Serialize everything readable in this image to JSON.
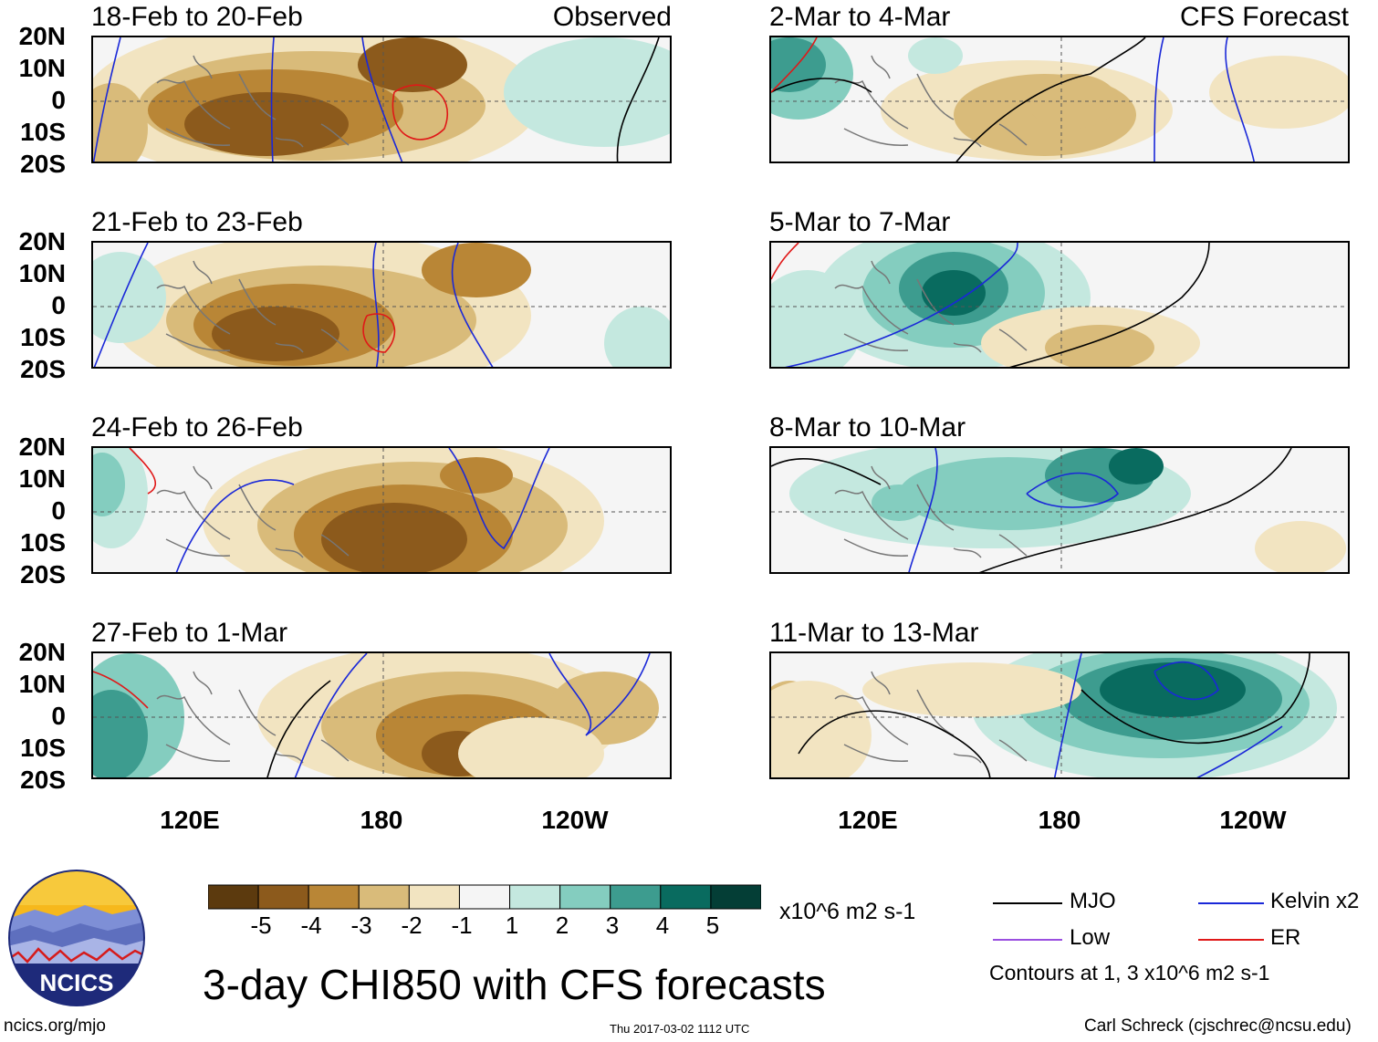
{
  "header": {
    "observed_label": "Observed",
    "forecast_label": "CFS Forecast"
  },
  "panels": {
    "left": [
      {
        "title": "18-Feb to 20-Feb"
      },
      {
        "title": "21-Feb to 23-Feb"
      },
      {
        "title": "24-Feb to 26-Feb"
      },
      {
        "title": "27-Feb to 1-Mar"
      }
    ],
    "right": [
      {
        "title": "2-Mar to 4-Mar"
      },
      {
        "title": "5-Mar to 7-Mar"
      },
      {
        "title": "8-Mar to 10-Mar"
      },
      {
        "title": "11-Mar to 13-Mar"
      }
    ]
  },
  "axes": {
    "lat_ticks": [
      "20N",
      "10N",
      "0",
      "10S",
      "20S"
    ],
    "lon_ticks": [
      "120E",
      "180",
      "120W"
    ]
  },
  "colorbar": {
    "labels": [
      "-5",
      "-4",
      "-3",
      "-2",
      "-1",
      "1",
      "2",
      "3",
      "4",
      "5"
    ],
    "colors": [
      "#5c3a0e",
      "#8c5a1c",
      "#b98636",
      "#d9bb7a",
      "#f2e4c1",
      "#f5f5f5",
      "#c4e8df",
      "#84cdbf",
      "#3d9c8f",
      "#096b5f",
      "#043e36"
    ],
    "units": "x10^6 m2 s-1"
  },
  "legend": {
    "items": [
      {
        "label": "MJO",
        "color": "#000000"
      },
      {
        "label": "Kelvin x2",
        "color": "#1a28d8"
      },
      {
        "label": "Low",
        "color": "#9a4fe0"
      },
      {
        "label": "ER",
        "color": "#e01818"
      }
    ],
    "note": "Contours at 1, 3 x10^6 m2 s-1"
  },
  "title": "3-day CHI850 with CFS forecasts",
  "footer": {
    "site": "ncics.org/mjo",
    "timestamp": "Thu 2017-03-02 1112 UTC",
    "credit": "Carl Schreck (cjschrec@ncsu.edu)"
  },
  "logo": {
    "text": "NCICS"
  }
}
